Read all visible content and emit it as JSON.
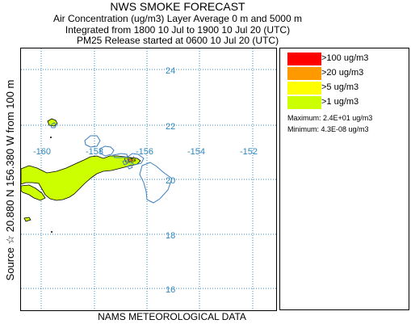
{
  "header": {
    "title": "NWS SMOKE FORECAST",
    "line2": "Air Concentration (ug/m3) Layer Average    0 m and  5000 m",
    "line3": "Integrated from 1800 10 Jul to 1900 10 Jul 20 (UTC)",
    "line4": "PM25 Release started at 0600 10 Jul 20 (UTC)"
  },
  "side_label": "Source ☆  20.880 N 156.380  W   from  100 m",
  "footer": "NAMS METEOROLOGICAL DATA",
  "map": {
    "lat_labels": [
      "24",
      "22",
      "20",
      "18",
      "16"
    ],
    "lon_labels": [
      "-160",
      "-158",
      "-156",
      "-154",
      "-152"
    ],
    "source_marker": "☆",
    "grid_color": "#2f88c0",
    "coast_color": "#3a7fbf"
  },
  "legend": {
    "items": [
      {
        "label": ">100 ug/m3",
        "color": "#ff0000"
      },
      {
        "label": ">20 ug/m3",
        "color": "#ff9900"
      },
      {
        "label": ">5 ug/m3",
        "color": "#ffff00"
      },
      {
        "label": ">1 ug/m3",
        "color": "#ccff00"
      }
    ],
    "maximum": "Maximum: 2.4E+01 ug/m3",
    "minimum": "Minimum: 4.3E-08 ug/m3"
  }
}
